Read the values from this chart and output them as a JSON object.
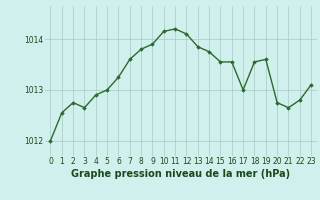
{
  "x": [
    0,
    1,
    2,
    3,
    4,
    5,
    6,
    7,
    8,
    9,
    10,
    11,
    12,
    13,
    14,
    15,
    16,
    17,
    18,
    19,
    20,
    21,
    22,
    23
  ],
  "y": [
    1012.0,
    1012.55,
    1012.75,
    1012.65,
    1012.9,
    1013.0,
    1013.25,
    1013.6,
    1013.8,
    1013.9,
    1014.15,
    1014.2,
    1014.1,
    1013.85,
    1013.75,
    1013.55,
    1013.55,
    1013.0,
    1013.55,
    1013.6,
    1012.75,
    1012.65,
    1012.8,
    1013.1
  ],
  "line_color": "#2d6a2d",
  "marker": "D",
  "marker_size": 1.8,
  "bg_color": "#cff0ec",
  "grid_color": "#a8c8c4",
  "xlabel": "Graphe pression niveau de la mer (hPa)",
  "xlabel_fontsize": 7.0,
  "xlabel_color": "#1a4a1a",
  "tick_color": "#1a4a1a",
  "ylim": [
    1011.7,
    1014.65
  ],
  "xlim": [
    -0.5,
    23.5
  ],
  "yticks": [
    1012,
    1013,
    1014
  ],
  "xticks": [
    0,
    1,
    2,
    3,
    4,
    5,
    6,
    7,
    8,
    9,
    10,
    11,
    12,
    13,
    14,
    15,
    16,
    17,
    18,
    19,
    20,
    21,
    22,
    23
  ],
  "tick_fontsize": 5.5,
  "linewidth": 1.0
}
